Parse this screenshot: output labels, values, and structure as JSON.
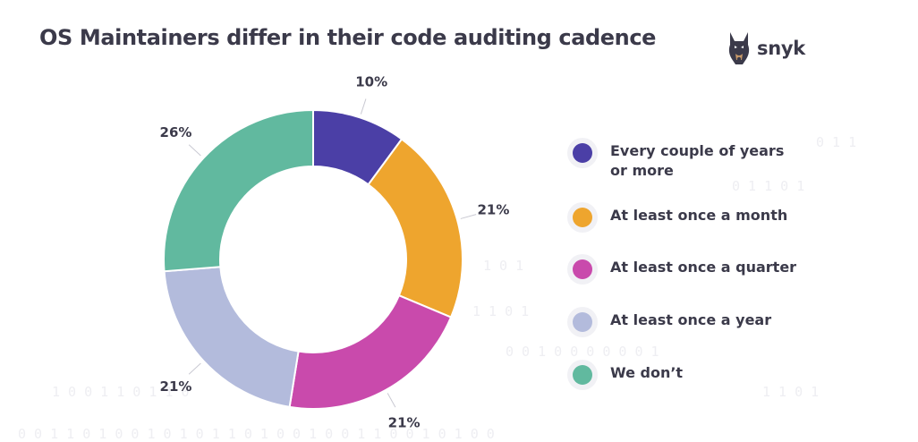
{
  "title": "OS Maintainers differ in their code auditing cadence",
  "brand": {
    "name": "snyk",
    "logo_icon": "doberman-logo-icon"
  },
  "background_pattern": {
    "rows": [
      "0 1 1",
      "0 1 1 0 1",
      "1 0 1",
      "1 1 0 1",
      "0 0 1 0 0 0 0 0 0 1",
      "1 0 0 1 1 0 1 1 0",
      "1 1 0 1",
      "0 0 1 1 0 1 0 0 1 0 1 0 1 1 0 1 0 0 1 0 0 1 1 0 0 1 0 1 0 0"
    ]
  },
  "chart_data": {
    "type": "pie",
    "donut": true,
    "title": "OS Maintainers differ in their code auditing cadence",
    "legend_position": "right",
    "slices": [
      {
        "label": "Every couple of years or more",
        "value": 10,
        "display": "10%",
        "color": "#4b3fa6"
      },
      {
        "label": "At least once a month",
        "value": 21,
        "display": "21%",
        "color": "#eea52e"
      },
      {
        "label": "At least once a quarter",
        "value": 21,
        "display": "21%",
        "color": "#c94aac"
      },
      {
        "label": "At least once a year",
        "value": 21,
        "display": "21%",
        "color": "#b3bbdc"
      },
      {
        "label": "We don’t",
        "value": 26,
        "display": "26%",
        "color": "#61b99f"
      }
    ]
  },
  "legend": {
    "items": [
      {
        "label": "Every couple of years or more",
        "color": "#4b3fa6"
      },
      {
        "label": "At least once a month",
        "color": "#eea52e"
      },
      {
        "label": "At least once a quarter",
        "color": "#c94aac"
      },
      {
        "label": "At least once a year",
        "color": "#b3bbdc"
      },
      {
        "label": "We don’t",
        "color": "#61b99f"
      }
    ]
  }
}
